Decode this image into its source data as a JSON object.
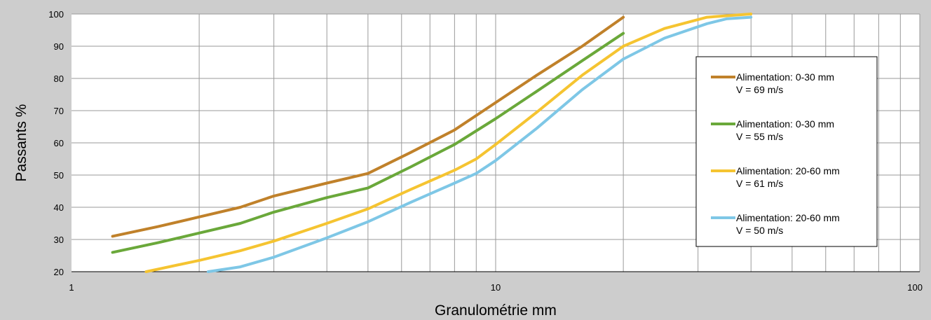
{
  "chart_data": {
    "type": "line",
    "xlabel": "Granulométrie mm",
    "ylabel": "Passants %",
    "xscale": "log",
    "xlim": [
      1,
      100
    ],
    "ylim": [
      20,
      100
    ],
    "x_tick_labels": [
      "1",
      "10",
      "100"
    ],
    "y_tick_labels": [
      "20",
      "30",
      "40",
      "50",
      "60",
      "70",
      "80",
      "90",
      "100"
    ],
    "grid": true,
    "legend_position": "right",
    "series": [
      {
        "name": "Alimentation: 0-30 mm V = 69 m/s",
        "legend_line1": "Alimentation: 0-30 mm",
        "legend_line2": "V = 69 m/s",
        "color": "#c0812a",
        "x": [
          1.25,
          1.6,
          2,
          2.5,
          3,
          4,
          5,
          6.3,
          8,
          10,
          12.5,
          16,
          20
        ],
        "y": [
          31,
          34,
          37,
          40,
          43.5,
          47.5,
          50.5,
          57,
          64,
          72.5,
          81,
          90,
          99
        ]
      },
      {
        "name": "Alimentation: 0-30 mm V = 55 m/s",
        "legend_line1": "Alimentation: 0-30 mm",
        "legend_line2": "V = 55 m/s",
        "color": "#6aa83a",
        "x": [
          1.25,
          1.6,
          2,
          2.5,
          3,
          4,
          5,
          6.3,
          8,
          10,
          12.5,
          16,
          20
        ],
        "y": [
          26,
          29,
          32,
          35,
          38.5,
          43,
          46,
          52.5,
          59.5,
          67.5,
          76,
          85.5,
          94
        ]
      },
      {
        "name": "Alimentation: 20-60 mm V = 61 m/s",
        "legend_line1": "Alimentation: 20-60 mm",
        "legend_line2": "V = 61 m/s",
        "color": "#f5c431",
        "x": [
          1.5,
          2,
          2.5,
          3,
          4,
          5,
          6.3,
          8,
          9,
          10,
          12.5,
          16,
          20,
          25,
          31.5,
          40
        ],
        "y": [
          20,
          23.5,
          26.5,
          29.5,
          35,
          39.5,
          45.5,
          51.5,
          55,
          59.5,
          69.5,
          81,
          90,
          95.5,
          99,
          100
        ]
      },
      {
        "name": "Alimentation: 20-60 mm V = 50 m/s",
        "legend_line1": "Alimentation: 20-60 mm",
        "legend_line2": "V = 50 m/s",
        "color": "#7ec7e6",
        "x": [
          2.1,
          2.5,
          3,
          4,
          5,
          6.3,
          8,
          9,
          10,
          12.5,
          16,
          20,
          25,
          31.5,
          35,
          40
        ],
        "y": [
          20,
          21.5,
          24.5,
          30.5,
          35.5,
          41.5,
          47.5,
          50.5,
          54.5,
          64.5,
          76.5,
          86,
          92.5,
          97,
          98.5,
          99
        ]
      }
    ]
  }
}
